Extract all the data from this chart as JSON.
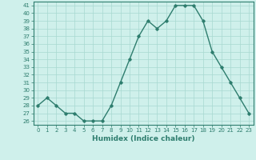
{
  "x": [
    0,
    1,
    2,
    3,
    4,
    5,
    6,
    7,
    8,
    9,
    10,
    11,
    12,
    13,
    14,
    15,
    16,
    17,
    18,
    19,
    20,
    21,
    22,
    23
  ],
  "y": [
    28,
    29,
    28,
    27,
    27,
    26,
    26,
    26,
    28,
    31,
    34,
    37,
    39,
    38,
    39,
    41,
    41,
    41,
    39,
    35,
    33,
    31,
    29,
    27
  ],
  "line_color": "#2e7d6e",
  "marker": "D",
  "marker_size": 1.8,
  "linewidth": 1.0,
  "bg_color": "#cff0eb",
  "grid_color": "#a8d8d0",
  "xlabel": "Humidex (Indice chaleur)",
  "xlim": [
    -0.5,
    23.5
  ],
  "ylim": [
    25.5,
    41.5
  ],
  "yticks": [
    26,
    27,
    28,
    29,
    30,
    31,
    32,
    33,
    34,
    35,
    36,
    37,
    38,
    39,
    40,
    41
  ],
  "xticks": [
    0,
    1,
    2,
    3,
    4,
    5,
    6,
    7,
    8,
    9,
    10,
    11,
    12,
    13,
    14,
    15,
    16,
    17,
    18,
    19,
    20,
    21,
    22,
    23
  ],
  "tick_fontsize": 5,
  "xlabel_fontsize": 6.5,
  "axis_color": "#2e7d6e",
  "tick_color": "#2e7d6e"
}
